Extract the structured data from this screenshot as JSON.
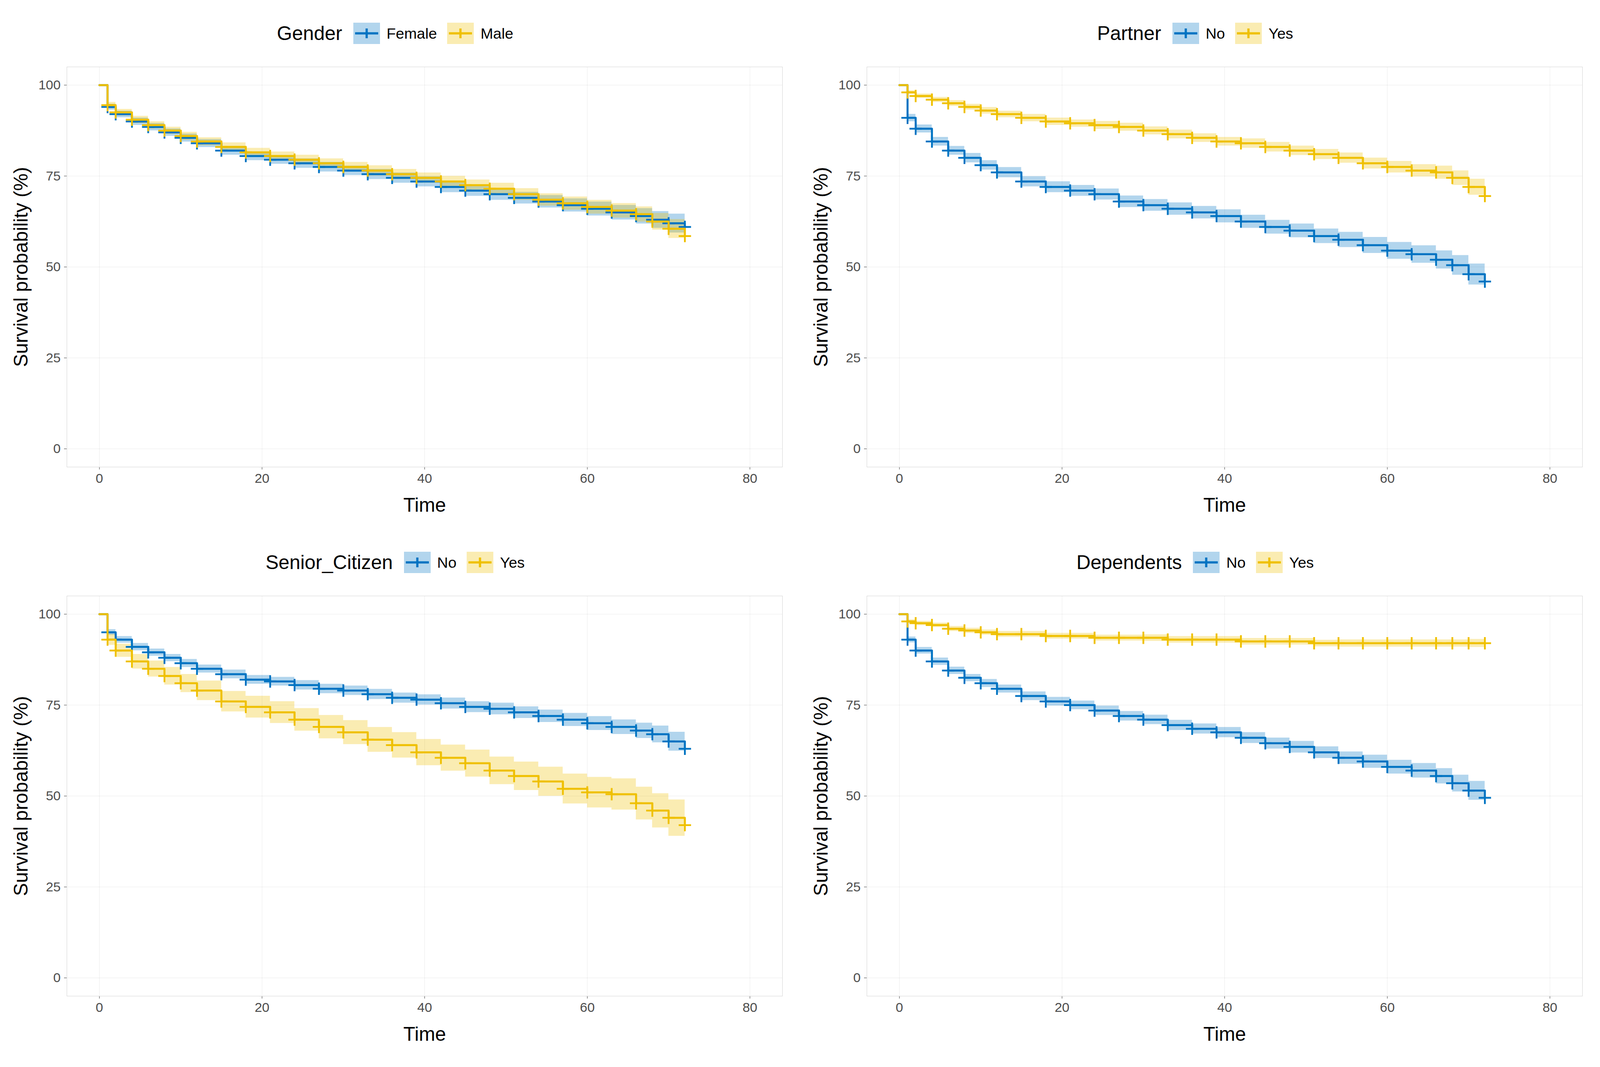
{
  "chart_data": [
    {
      "type": "line",
      "legend_title": "Gender",
      "legend": "top",
      "marker": "plus",
      "line_style": "step",
      "grid": true,
      "xlabel": "Time",
      "ylabel": "Survival probability (%)",
      "xlim": [
        -4,
        84
      ],
      "ylim": [
        -5,
        105
      ],
      "xticks": [
        0,
        20,
        40,
        60,
        80
      ],
      "yticks": [
        0,
        25,
        50,
        75,
        100
      ],
      "x": [
        0,
        1,
        2,
        4,
        6,
        8,
        10,
        12,
        15,
        18,
        21,
        24,
        27,
        30,
        33,
        36,
        39,
        42,
        45,
        48,
        51,
        54,
        57,
        60,
        63,
        66,
        68,
        70,
        72
      ],
      "series": [
        {
          "name": "Female",
          "color": "#0073C2",
          "values": [
            100,
            94,
            92,
            90,
            88.5,
            87,
            85.5,
            84,
            82,
            80.5,
            79.5,
            78.5,
            77.5,
            76.5,
            75.5,
            74.5,
            73.5,
            72,
            71,
            70,
            69,
            68,
            67,
            66,
            65,
            64,
            63,
            62,
            61
          ],
          "error": [
            0,
            0.8,
            0.9,
            1,
            1,
            1,
            1.1,
            1.1,
            1.2,
            1.2,
            1.2,
            1.3,
            1.3,
            1.3,
            1.4,
            1.4,
            1.4,
            1.5,
            1.5,
            1.6,
            1.6,
            1.7,
            1.8,
            1.9,
            2,
            2.1,
            2.3,
            2.6,
            3
          ]
        },
        {
          "name": "Male",
          "color": "#EFC000",
          "values": [
            100,
            94.5,
            92.5,
            90.5,
            89,
            87.5,
            86,
            84.5,
            83,
            81.5,
            80.5,
            79.5,
            78.5,
            77.5,
            76.5,
            75.5,
            74.5,
            73.5,
            72.5,
            71.5,
            70,
            68.5,
            67.5,
            66.5,
            65.5,
            64.5,
            62.5,
            60.5,
            58.5
          ],
          "error": [
            0,
            0.8,
            0.9,
            1,
            1,
            1,
            1.1,
            1.1,
            1.2,
            1.2,
            1.2,
            1.3,
            1.3,
            1.3,
            1.4,
            1.4,
            1.4,
            1.5,
            1.5,
            1.6,
            1.6,
            1.7,
            1.8,
            1.9,
            2,
            2.1,
            2.3,
            2.6,
            3
          ]
        }
      ]
    },
    {
      "type": "line",
      "legend_title": "Partner",
      "legend": "top",
      "marker": "plus",
      "line_style": "step",
      "grid": true,
      "xlabel": "Time",
      "ylabel": "Survival probability (%)",
      "xlim": [
        -4,
        84
      ],
      "ylim": [
        -5,
        105
      ],
      "xticks": [
        0,
        20,
        40,
        60,
        80
      ],
      "yticks": [
        0,
        25,
        50,
        75,
        100
      ],
      "x": [
        0,
        1,
        2,
        4,
        6,
        8,
        10,
        12,
        15,
        18,
        21,
        24,
        27,
        30,
        33,
        36,
        39,
        42,
        45,
        48,
        51,
        54,
        57,
        60,
        63,
        66,
        68,
        70,
        72
      ],
      "series": [
        {
          "name": "No",
          "color": "#0073C2",
          "values": [
            100,
            91,
            88,
            84.5,
            82,
            80,
            78,
            76,
            73.5,
            72,
            71,
            70,
            68,
            67,
            66,
            65,
            64,
            62.5,
            61,
            60,
            58.5,
            57.5,
            56,
            54.5,
            53.5,
            52,
            50.5,
            48,
            46
          ],
          "error": [
            0,
            1,
            1.1,
            1.2,
            1.2,
            1.3,
            1.3,
            1.4,
            1.4,
            1.5,
            1.5,
            1.5,
            1.6,
            1.6,
            1.7,
            1.7,
            1.8,
            1.8,
            1.9,
            1.9,
            2,
            2.1,
            2.2,
            2.3,
            2.4,
            2.5,
            2.7,
            2.9,
            3.2
          ]
        },
        {
          "name": "Yes",
          "color": "#EFC000",
          "values": [
            100,
            98,
            97,
            96,
            95,
            94,
            93,
            92,
            91,
            90,
            89.5,
            89,
            88.5,
            87.5,
            86.5,
            85.5,
            84.5,
            84,
            83,
            82,
            81,
            80,
            78.5,
            77.5,
            76.5,
            76,
            74.5,
            72,
            69.5
          ],
          "error": [
            0,
            0.5,
            0.6,
            0.7,
            0.8,
            0.8,
            0.9,
            0.9,
            1,
            1,
            1,
            1.1,
            1.1,
            1.1,
            1.2,
            1.2,
            1.2,
            1.3,
            1.3,
            1.3,
            1.4,
            1.4,
            1.5,
            1.6,
            1.7,
            1.8,
            2,
            2.2,
            2.5
          ]
        }
      ]
    },
    {
      "type": "line",
      "legend_title": "Senior_Citizen",
      "legend": "top",
      "marker": "plus",
      "line_style": "step",
      "grid": true,
      "xlabel": "Time",
      "ylabel": "Survival probability (%)",
      "xlim": [
        -4,
        84
      ],
      "ylim": [
        -5,
        105
      ],
      "xticks": [
        0,
        20,
        40,
        60,
        80
      ],
      "yticks": [
        0,
        25,
        50,
        75,
        100
      ],
      "x": [
        0,
        1,
        2,
        4,
        6,
        8,
        10,
        12,
        15,
        18,
        21,
        24,
        27,
        30,
        33,
        36,
        39,
        42,
        45,
        48,
        51,
        54,
        57,
        60,
        63,
        66,
        68,
        70,
        72
      ],
      "series": [
        {
          "name": "No",
          "color": "#0073C2",
          "values": [
            100,
            95,
            93,
            91,
            89.5,
            88,
            86.5,
            85,
            83.5,
            82,
            81.5,
            80.5,
            79.5,
            79,
            78,
            77,
            76.5,
            75.5,
            74.5,
            74,
            73,
            72,
            71,
            70,
            69,
            68,
            67,
            65,
            63
          ],
          "error": [
            0,
            0.8,
            0.9,
            1,
            1,
            1,
            1.1,
            1.1,
            1.2,
            1.2,
            1.2,
            1.3,
            1.3,
            1.3,
            1.4,
            1.4,
            1.4,
            1.5,
            1.5,
            1.6,
            1.6,
            1.7,
            1.8,
            1.9,
            2,
            2.1,
            2.3,
            2.6,
            3
          ]
        },
        {
          "name": "Yes",
          "color": "#EFC000",
          "values": [
            100,
            93,
            90,
            87,
            85,
            83,
            81,
            79,
            76,
            74.5,
            73,
            71,
            69,
            67.5,
            65.5,
            64,
            62,
            60.5,
            59,
            57,
            55.5,
            54,
            52,
            51,
            50.5,
            48,
            46,
            44,
            42
          ],
          "error": [
            0,
            1.5,
            1.8,
            2,
            2.2,
            2.4,
            2.5,
            2.7,
            2.8,
            3,
            3,
            3.1,
            3.2,
            3.3,
            3.4,
            3.5,
            3.6,
            3.6,
            3.7,
            3.8,
            3.9,
            4,
            4.1,
            4.2,
            4.3,
            4.5,
            4.7,
            5,
            5.2
          ]
        }
      ]
    },
    {
      "type": "line",
      "legend_title": "Dependents",
      "legend": "top",
      "marker": "plus",
      "line_style": "step",
      "grid": true,
      "xlabel": "Time",
      "ylabel": "Survival probability (%)",
      "xlim": [
        -4,
        84
      ],
      "ylim": [
        -5,
        105
      ],
      "xticks": [
        0,
        20,
        40,
        60,
        80
      ],
      "yticks": [
        0,
        25,
        50,
        75,
        100
      ],
      "x": [
        0,
        1,
        2,
        4,
        6,
        8,
        10,
        12,
        15,
        18,
        21,
        24,
        27,
        30,
        33,
        36,
        39,
        42,
        45,
        48,
        51,
        54,
        57,
        60,
        63,
        66,
        68,
        70,
        72
      ],
      "series": [
        {
          "name": "No",
          "color": "#0073C2",
          "values": [
            100,
            93,
            90,
            87,
            84.5,
            82.5,
            81,
            79.5,
            77.5,
            76,
            75,
            73.5,
            72,
            71,
            69.5,
            68.5,
            67.5,
            66,
            64.5,
            63.5,
            62,
            60.5,
            59.5,
            58,
            57,
            55.5,
            53.5,
            51.5,
            49.5
          ],
          "error": [
            0,
            0.8,
            0.9,
            1,
            1,
            1,
            1.1,
            1.1,
            1.2,
            1.2,
            1.2,
            1.3,
            1.3,
            1.3,
            1.4,
            1.4,
            1.4,
            1.5,
            1.5,
            1.6,
            1.6,
            1.7,
            1.8,
            1.9,
            2,
            2.1,
            2.3,
            2.6,
            3
          ]
        },
        {
          "name": "Yes",
          "color": "#EFC000",
          "values": [
            100,
            98,
            97.5,
            97,
            96,
            95.5,
            95,
            94.5,
            94.5,
            94,
            94,
            93.5,
            93.5,
            93.5,
            93,
            93,
            93,
            92.5,
            92.5,
            92.5,
            92,
            92,
            92,
            92,
            92,
            92,
            92,
            92,
            92
          ],
          "error": [
            0,
            0.5,
            0.6,
            0.6,
            0.7,
            0.7,
            0.7,
            0.8,
            0.8,
            0.8,
            0.8,
            0.8,
            0.8,
            0.9,
            0.9,
            0.9,
            0.9,
            0.9,
            0.9,
            0.9,
            0.9,
            1,
            1,
            1,
            1,
            1,
            1,
            1.1,
            1.2
          ]
        }
      ]
    }
  ]
}
